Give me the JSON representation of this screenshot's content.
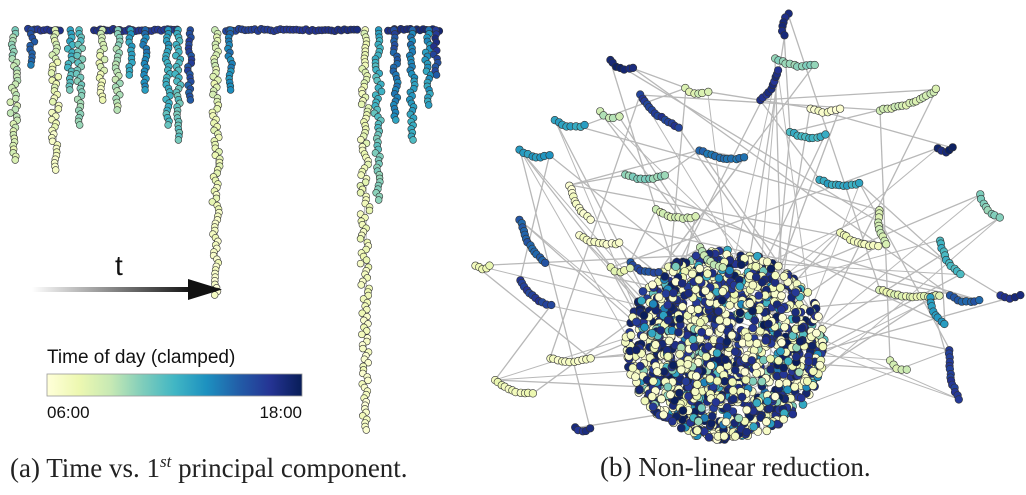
{
  "colormap": [
    "#ffffd9",
    "#edf8b1",
    "#c7e9b4",
    "#7fcdbb",
    "#41b6c4",
    "#1d91c0",
    "#225ea8",
    "#253494",
    "#081d58"
  ],
  "edge_color": "#b8b8b8",
  "panel_a": {
    "arrow_label": "t",
    "colorbar": {
      "title": "Time of day (clamped)",
      "min_label": "06:00",
      "max_label": "18:00"
    }
  },
  "captions": {
    "a": {
      "label": "(a)",
      "prefix": "Time vs. 1",
      "sup": "st",
      "suffix": " principal component."
    },
    "b": {
      "label": "(b)",
      "text": "Non-linear reduction."
    }
  }
}
